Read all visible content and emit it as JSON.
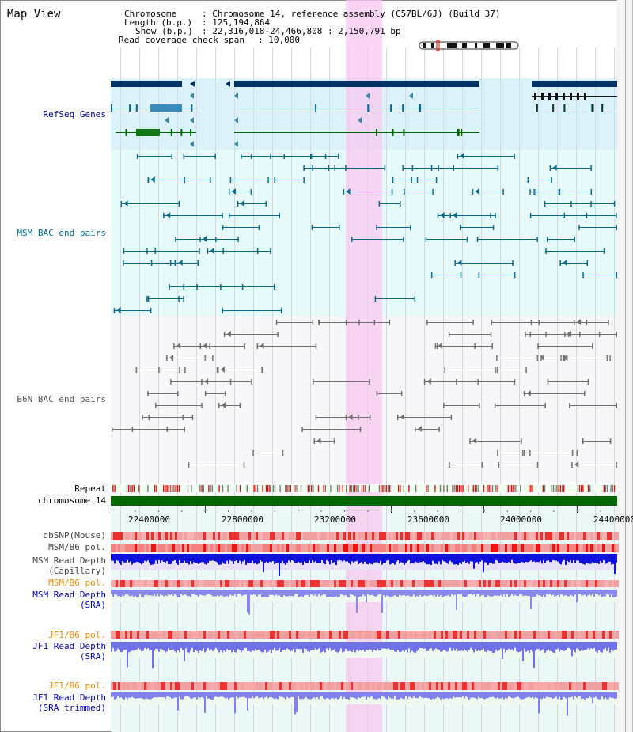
{
  "title": "Map View",
  "info": {
    "chrom_key": "Chromosome",
    "chrom_val": ": Chromosome 14, reference assembly (C57BL/6J) (Build 37)",
    "length_key": "Length (b.p.)",
    "length_val": ": 125,194,864",
    "show_key": "Show (b.p.)",
    "show_val": ": 22,316,018-24,466,808 : 2,150,791 bp",
    "span_key": "Read coverage check span",
    "span_val": ": 10,000"
  },
  "tracks": {
    "refseq": "RefSeq Genes",
    "msm_bac": "MSM BAC end pairs",
    "b6n_bac": "B6N BAC end pairs",
    "repeat": "Repeat",
    "chromosome": "chromosome 14",
    "dbsnp": "dbSNP(Mouse)",
    "msm_b6_pol": "MSM/B6 pol.",
    "msm_depth_cap_1": "MSM Read Depth",
    "msm_depth_cap_2": "(Capillary)",
    "msm_b6_pol_2": "MSM/B6 pol.",
    "msm_depth_sra_1": "MSM Read Depth",
    "msm_depth_sra_2": "(SRA)",
    "jf1_pol_1": "JF1/B6 pol.",
    "jf1_depth_1": "JF1 Read Depth",
    "jf1_depth_1b": "(SRA)",
    "jf1_pol_2": "JF1/B6 pol.",
    "jf1_depth_2": "JF1 Read Depth",
    "jf1_depth_2b": "(SRA trimmed)"
  },
  "axis": {
    "ticks": [
      "22400000",
      "22800000",
      "23200000",
      "23600000",
      "24000000",
      "24400000"
    ]
  },
  "colors": {
    "refseq_label": "#0000aa",
    "msm_bac_label": "#006688",
    "b6n_label": "#555555",
    "pol_orange": "#ee8800",
    "depth_blue": "#0000cc",
    "highlight": "#f8c8f0",
    "chrom_green": "#006600"
  }
}
